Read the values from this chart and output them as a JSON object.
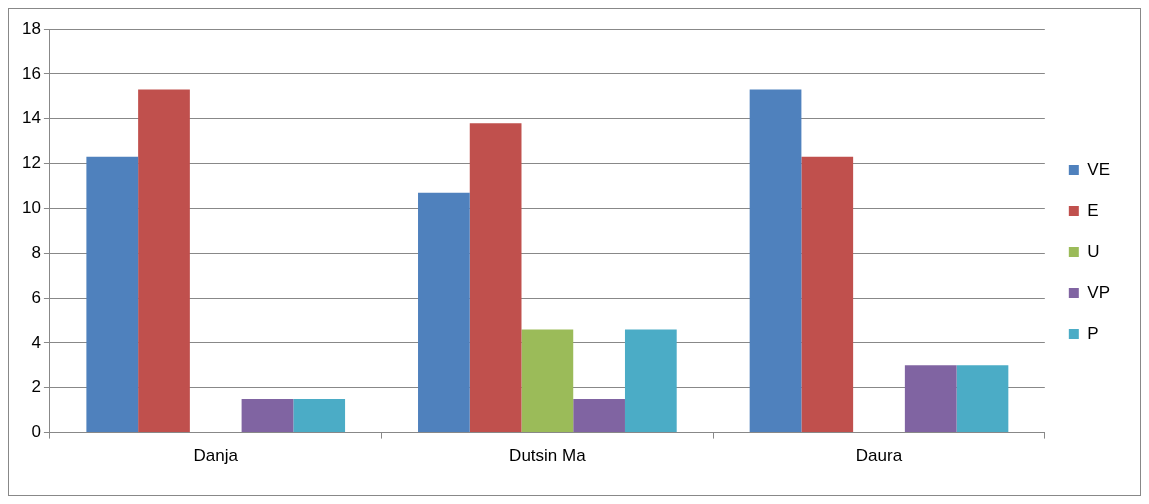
{
  "chart_data": {
    "type": "bar",
    "categories": [
      "Danja",
      "Dutsin Ma",
      "Daura"
    ],
    "series": [
      {
        "name": "VE",
        "color": "#4f81bd",
        "values": [
          12.3,
          10.7,
          15.3
        ]
      },
      {
        "name": "E",
        "color": "#c0504d",
        "values": [
          15.3,
          13.8,
          12.3
        ]
      },
      {
        "name": "U",
        "color": "#9bbb59",
        "values": [
          0,
          4.6,
          0
        ]
      },
      {
        "name": "VP",
        "color": "#8064a2",
        "values": [
          1.5,
          1.5,
          3.0
        ]
      },
      {
        "name": "P",
        "color": "#4bacc6",
        "values": [
          1.5,
          4.6,
          3.0
        ]
      }
    ],
    "ylim": [
      0,
      18
    ],
    "yticks": [
      0,
      2,
      4,
      6,
      8,
      10,
      12,
      14,
      16,
      18
    ],
    "grid": "y",
    "legend": "right"
  }
}
